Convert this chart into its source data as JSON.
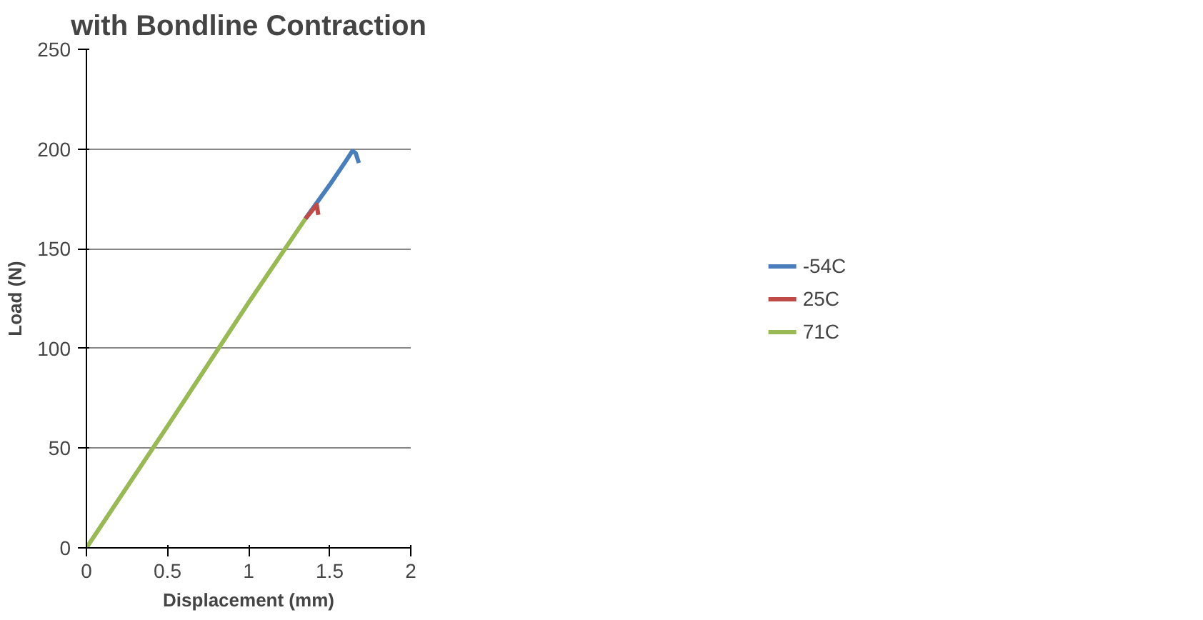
{
  "chart_data": {
    "type": "line",
    "title": "with Bondline Contraction",
    "xlabel": "Displacement (mm)",
    "ylabel": "Load (N)",
    "xlim": [
      0,
      2
    ],
    "xticks": [
      0,
      0.5,
      1,
      1.5,
      2
    ],
    "ylim": [
      0,
      250
    ],
    "yticks": [
      0,
      50,
      100,
      150,
      200,
      250
    ],
    "grid": "y",
    "legend": "right",
    "marker": "none",
    "line_style": "solid",
    "series": [
      {
        "name": "-54C",
        "color": "#4a7ebb",
        "x": [
          1.35,
          1.5,
          1.6,
          1.64,
          1.66,
          1.68
        ],
        "values": [
          165,
          182,
          194,
          199,
          198,
          193
        ]
      },
      {
        "name": "25C",
        "color": "#be4b48",
        "x": [
          1.35,
          1.4,
          1.42,
          1.43
        ],
        "values": [
          165,
          170,
          172,
          167
        ]
      },
      {
        "name": "71C",
        "color": "#98b954",
        "x": [
          0,
          0.5,
          1,
          1.35
        ],
        "values": [
          0,
          61,
          123,
          165
        ]
      }
    ]
  }
}
